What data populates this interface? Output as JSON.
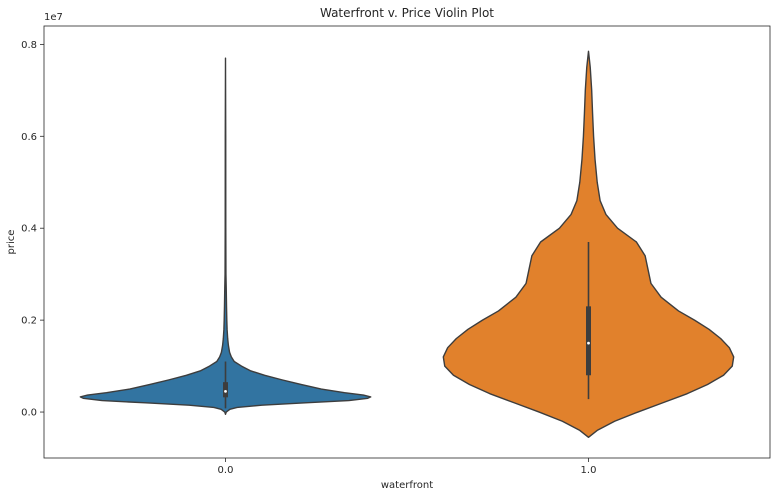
{
  "chart_data": {
    "type": "violin",
    "title": "Waterfront v. Price Violin Plot",
    "xlabel": "waterfront",
    "ylabel": "price",
    "y_offset_label": "1e7",
    "categories": [
      "0.0",
      "1.0"
    ],
    "colors": [
      "#3274a1",
      "#e1812c"
    ],
    "ylim": [
      -1.0,
      8.4
    ],
    "yticks": [
      0.0,
      0.2,
      0.4,
      0.6,
      0.8
    ],
    "ytick_labels": [
      "0.0",
      "0.2",
      "0.4",
      "0.6",
      "0.8"
    ],
    "y_scale": 10000000,
    "series": [
      {
        "category": "0.0",
        "max": 7700000,
        "q3": 650000,
        "median": 450000,
        "q1": 320000,
        "lower_whisker": 80000,
        "upper_whisker": 1100000,
        "density": [
          [
            -50000,
            0.0
          ],
          [
            0,
            0.005
          ],
          [
            60000,
            0.03
          ],
          [
            100000,
            0.08
          ],
          [
            150000,
            0.25
          ],
          [
            200000,
            0.55
          ],
          [
            250000,
            0.85
          ],
          [
            300000,
            0.98
          ],
          [
            330000,
            1.0
          ],
          [
            370000,
            0.95
          ],
          [
            420000,
            0.82
          ],
          [
            500000,
            0.66
          ],
          [
            600000,
            0.52
          ],
          [
            700000,
            0.39
          ],
          [
            800000,
            0.27
          ],
          [
            900000,
            0.17
          ],
          [
            1000000,
            0.11
          ],
          [
            1100000,
            0.06
          ],
          [
            1200000,
            0.04
          ],
          [
            1300000,
            0.028
          ],
          [
            1450000,
            0.02
          ],
          [
            1600000,
            0.015
          ],
          [
            1800000,
            0.011
          ],
          [
            2000000,
            0.009
          ],
          [
            2300000,
            0.007
          ],
          [
            2700000,
            0.005
          ],
          [
            3000000,
            0.003
          ],
          [
            4000000,
            0.002
          ],
          [
            6000000,
            0.0015
          ],
          [
            7700000,
            0.0
          ]
        ]
      },
      {
        "category": "1.0",
        "max": 7850000,
        "q3": 2300000,
        "median": 1500000,
        "q1": 800000,
        "lower_whisker": 280000,
        "upper_whisker": 3700000,
        "density": [
          [
            -550000,
            0.0
          ],
          [
            -400000,
            0.06
          ],
          [
            -200000,
            0.18
          ],
          [
            0,
            0.34
          ],
          [
            200000,
            0.51
          ],
          [
            400000,
            0.68
          ],
          [
            600000,
            0.82
          ],
          [
            800000,
            0.93
          ],
          [
            1000000,
            0.99
          ],
          [
            1200000,
            1.0
          ],
          [
            1400000,
            0.97
          ],
          [
            1600000,
            0.91
          ],
          [
            1800000,
            0.83
          ],
          [
            2000000,
            0.73
          ],
          [
            2200000,
            0.62
          ],
          [
            2500000,
            0.5
          ],
          [
            2800000,
            0.43
          ],
          [
            3100000,
            0.41
          ],
          [
            3400000,
            0.39
          ],
          [
            3700000,
            0.33
          ],
          [
            4000000,
            0.2
          ],
          [
            4300000,
            0.12
          ],
          [
            4600000,
            0.08
          ],
          [
            5000000,
            0.06
          ],
          [
            5500000,
            0.045
          ],
          [
            6000000,
            0.035
          ],
          [
            6500000,
            0.028
          ],
          [
            7000000,
            0.022
          ],
          [
            7500000,
            0.012
          ],
          [
            7850000,
            0.0
          ]
        ]
      }
    ]
  }
}
